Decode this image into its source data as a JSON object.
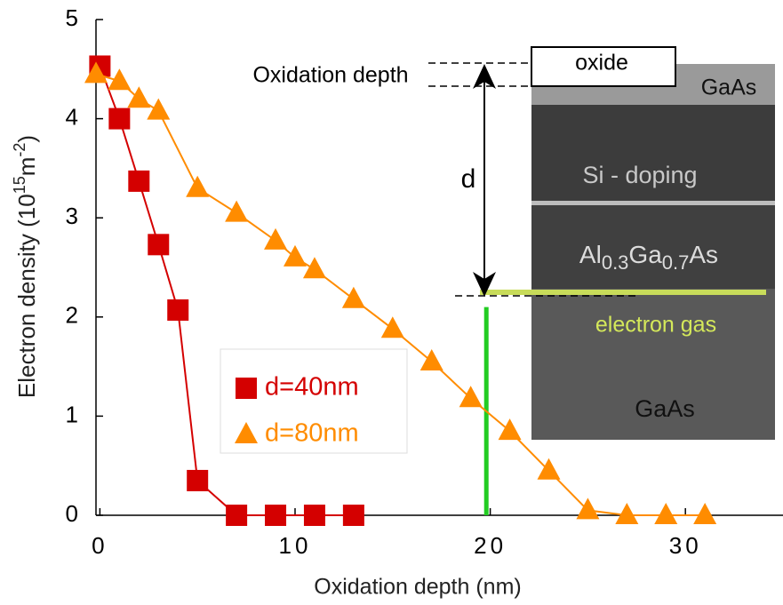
{
  "chart_data": {
    "type": "line",
    "x_label": "Oxidation depth (nm)",
    "y_label": [
      "Electron density (10",
      "15",
      "m",
      "-2",
      ")"
    ],
    "xlim": [
      -0.2,
      35
    ],
    "ylim": [
      0,
      5
    ],
    "xticks": [
      0,
      10,
      20,
      30
    ],
    "yticks": [
      0,
      1,
      2,
      3,
      4,
      5
    ],
    "series": [
      {
        "name": "d=40nm",
        "color": "#d40000",
        "marker": "square",
        "x": [
          0,
          1,
          2,
          3,
          4,
          5,
          7,
          9,
          11,
          13
        ],
        "values": [
          4.53,
          4.0,
          3.37,
          2.73,
          2.07,
          0.35,
          0,
          0,
          0,
          0
        ]
      },
      {
        "name": "d=80nm",
        "color": "#ff8c00",
        "marker": "triangle",
        "x": [
          -0.2,
          1,
          2,
          3,
          5,
          7,
          9,
          10,
          11,
          13,
          15,
          17,
          19,
          21,
          23,
          25,
          27,
          29,
          31
        ],
        "values": [
          4.45,
          4.38,
          4.2,
          4.08,
          3.3,
          3.05,
          2.77,
          2.6,
          2.48,
          2.18,
          1.88,
          1.55,
          1.18,
          0.85,
          0.45,
          0.05,
          0,
          0,
          0
        ]
      }
    ],
    "reference_line": {
      "x": 19.8,
      "ymax": 2.1,
      "color": "#22cc22"
    },
    "annotations": {
      "oxidation_depth": "Oxidation depth",
      "d": "d",
      "oxide": "oxide",
      "gaas_top": "GaAs",
      "si_doping": "Si - doping",
      "algaas": [
        "Al",
        "0.3",
        "Ga",
        "0.7",
        "As"
      ],
      "electron_gas": "electron gas",
      "gaas_bottom": "GaAs"
    }
  }
}
